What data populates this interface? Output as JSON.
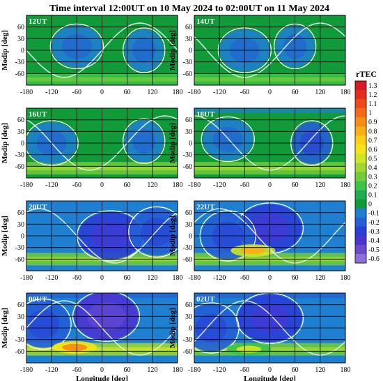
{
  "title": "Time interval 12:00UT on 10 May 2024 to 02:00UT on 11 May 2024",
  "colorbar": {
    "label": "rTEC",
    "min": -0.6,
    "max": 1.3,
    "ticks": [
      "1.3",
      "1.2",
      "1.1",
      "1",
      "0.9",
      "0.8",
      "0.7",
      "0.6",
      "0.5",
      "0.4",
      "0.3",
      "0.2",
      "0.1",
      "0",
      "-0.1",
      "-0.2",
      "-0.3",
      "-0.4",
      "-0.5",
      "-0.6"
    ],
    "colors": [
      "#d71b25",
      "#e32c1c",
      "#ee4a17",
      "#f46b13",
      "#f98d12",
      "#fcae14",
      "#fdd017",
      "#f3e51a",
      "#cde725",
      "#9fd92f",
      "#6fcc3a",
      "#3ec24a",
      "#1fae4f",
      "#109a3a",
      "#1f7fd0",
      "#245fd6",
      "#2a3fd6",
      "#4a35d0",
      "#6b4ad2",
      "#8e70dc"
    ]
  },
  "axes": {
    "xlabel": "Longitude [deg]",
    "ylabel": "Modip [deg]",
    "xticks": [
      "-180",
      "-120",
      "-60",
      "0",
      "60",
      "120",
      "180"
    ],
    "yticks": [
      "60",
      "30",
      "0",
      "-30",
      "-60"
    ]
  },
  "chart_data": [
    {
      "type": "heatmap",
      "panel_label": "12UT",
      "x_range": [
        -180,
        180
      ],
      "y_range": [
        -90,
        90
      ],
      "dominant_rtec": 0.05,
      "negative_regions": [
        {
          "lon": -60,
          "modip": 10,
          "rtec": -0.1
        },
        {
          "lon": 100,
          "modip": 0,
          "rtec": -0.1
        }
      ],
      "positive_band": {
        "modip": -75,
        "rtec": 0.2
      }
    },
    {
      "type": "heatmap",
      "panel_label": "14UT",
      "x_range": [
        -180,
        180
      ],
      "y_range": [
        -90,
        90
      ],
      "dominant_rtec": 0.05,
      "negative_regions": [
        {
          "lon": -60,
          "modip": 0,
          "rtec": -0.1
        },
        {
          "lon": 60,
          "modip": 10,
          "rtec": -0.1
        }
      ],
      "positive_band": {
        "modip": -75,
        "rtec": 0.2
      }
    },
    {
      "type": "heatmap",
      "panel_label": "16UT",
      "x_range": [
        -180,
        180
      ],
      "y_range": [
        -90,
        90
      ],
      "dominant_rtec": 0.05,
      "negative_regions": [
        {
          "lon": -120,
          "modip": 0,
          "rtec": -0.1
        },
        {
          "lon": 100,
          "modip": 5,
          "rtec": -0.1
        }
      ],
      "positive_band": {
        "modip": -65,
        "rtec": 0.3
      }
    },
    {
      "type": "heatmap",
      "panel_label": "18UT",
      "x_range": [
        -180,
        180
      ],
      "y_range": [
        -90,
        90
      ],
      "dominant_rtec": 0.0,
      "negative_regions": [
        {
          "lon": -100,
          "modip": 10,
          "rtec": -0.1
        },
        {
          "lon": 100,
          "modip": 0,
          "rtec": -0.2
        }
      ],
      "positive_band": {
        "modip": -65,
        "rtec": 0.3
      }
    },
    {
      "type": "heatmap",
      "panel_label": "20UT",
      "x_range": [
        -180,
        180
      ],
      "y_range": [
        -90,
        90
      ],
      "dominant_rtec": -0.05,
      "negative_regions": [
        {
          "lon": 20,
          "modip": 0,
          "rtec": -0.3
        },
        {
          "lon": 130,
          "modip": 10,
          "rtec": -0.2
        }
      ],
      "positive_band": {
        "modip": -60,
        "rtec": 0.3
      }
    },
    {
      "type": "heatmap",
      "panel_label": "22UT",
      "x_range": [
        -180,
        180
      ],
      "y_range": [
        -90,
        90
      ],
      "dominant_rtec": -0.05,
      "negative_regions": [
        {
          "lon": 0,
          "modip": 20,
          "rtec": -0.3
        },
        {
          "lon": -100,
          "modip": 0,
          "rtec": -0.2
        }
      ],
      "positive_band": {
        "modip": -60,
        "rtec": 0.3
      },
      "enhancement": {
        "lon": -40,
        "modip": -38,
        "rtec": 0.8
      }
    },
    {
      "type": "heatmap",
      "panel_label": "00UT",
      "x_range": [
        -180,
        180
      ],
      "y_range": [
        -90,
        90
      ],
      "dominant_rtec": -0.1,
      "negative_regions": [
        {
          "lon": 10,
          "modip": 30,
          "rtec": -0.4
        },
        {
          "lon": -140,
          "modip": 10,
          "rtec": -0.2
        }
      ],
      "positive_band": {
        "modip": -55,
        "rtec": 0.4
      },
      "enhancement": {
        "lon": -65,
        "modip": -50,
        "rtec": 0.9
      }
    },
    {
      "type": "heatmap",
      "panel_label": "02UT",
      "x_range": [
        -180,
        180
      ],
      "y_range": [
        -90,
        90
      ],
      "dominant_rtec": -0.1,
      "negative_regions": [
        {
          "lon": 0,
          "modip": 25,
          "rtec": -0.3
        },
        {
          "lon": -140,
          "modip": 0,
          "rtec": -0.2
        }
      ],
      "positive_band": {
        "modip": -55,
        "rtec": 0.3
      },
      "enhancement": {
        "lon": -50,
        "modip": -55,
        "rtec": 0.5
      }
    }
  ]
}
